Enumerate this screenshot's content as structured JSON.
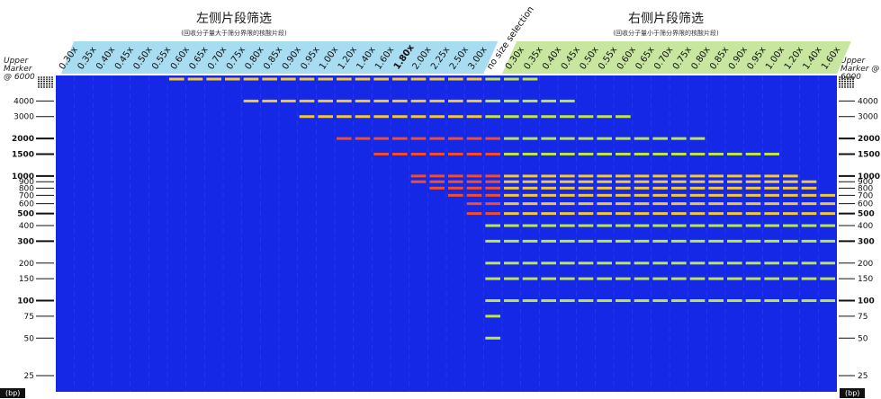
{
  "header": {
    "left_title": "左侧片段筛选",
    "left_subtitle": "(回收分子量大于筛分界限的核酸片段)",
    "right_title": "右侧片段筛选",
    "right_subtitle": "(回收分子量小于筛分界限的核酸片段)"
  },
  "marker": {
    "label_left": "Upper Marker @ 6000",
    "label_right": "Upper Marker @ 6000",
    "unit": "(bp)"
  },
  "colors": {
    "gel": "#1428e6",
    "left_header": "#a8dcf0",
    "right_header": "#c8e6a0",
    "highlight": "#e02020"
  },
  "chart_data": {
    "type": "heatmap",
    "y_ticks": [
      {
        "label": "4000",
        "value": 4000,
        "bold": false
      },
      {
        "label": "3000",
        "value": 3000,
        "bold": false
      },
      {
        "label": "2000",
        "value": 2000,
        "bold": true
      },
      {
        "label": "1500",
        "value": 1500,
        "bold": true
      },
      {
        "label": "1000",
        "value": 1000,
        "bold": true
      },
      {
        "label": "900",
        "value": 900,
        "bold": false
      },
      {
        "label": "800",
        "value": 800,
        "bold": false
      },
      {
        "label": "700",
        "value": 700,
        "bold": false
      },
      {
        "label": "600",
        "value": 600,
        "bold": false
      },
      {
        "label": "500",
        "value": 500,
        "bold": true
      },
      {
        "label": "400",
        "value": 400,
        "bold": false
      },
      {
        "label": "300",
        "value": 300,
        "bold": true
      },
      {
        "label": "200",
        "value": 200,
        "bold": false
      },
      {
        "label": "150",
        "value": 150,
        "bold": false
      },
      {
        "label": "100",
        "value": 100,
        "bold": true
      },
      {
        "label": "75",
        "value": 75,
        "bold": false
      },
      {
        "label": "50",
        "value": 50,
        "bold": false
      },
      {
        "label": "25",
        "value": 25,
        "bold": false
      }
    ],
    "left_lanes": [
      "0.30x",
      "0.35x",
      "0.40x",
      "0.45x",
      "0.50x",
      "0.55x",
      "0.60x",
      "0.65x",
      "0.70x",
      "0.75x",
      "0.80x",
      "0.85x",
      "0.90x",
      "0.95x",
      "1.00x",
      "1.20x",
      "1.40x",
      "1.60x",
      "1.80x",
      "2.00x",
      "2.25x",
      "2.50x",
      "3.00x"
    ],
    "middle_lane": "no size selection",
    "right_lanes": [
      "0.30x",
      "0.35x",
      "0.40x",
      "0.45x",
      "0.50x",
      "0.55x",
      "0.60x",
      "0.65x",
      "0.70x",
      "0.75x",
      "0.80x",
      "0.85x",
      "0.90x",
      "0.95x",
      "1.00x",
      "1.20x",
      "1.40x",
      "1.60x"
    ],
    "highlight_lane": "1.80x"
  }
}
